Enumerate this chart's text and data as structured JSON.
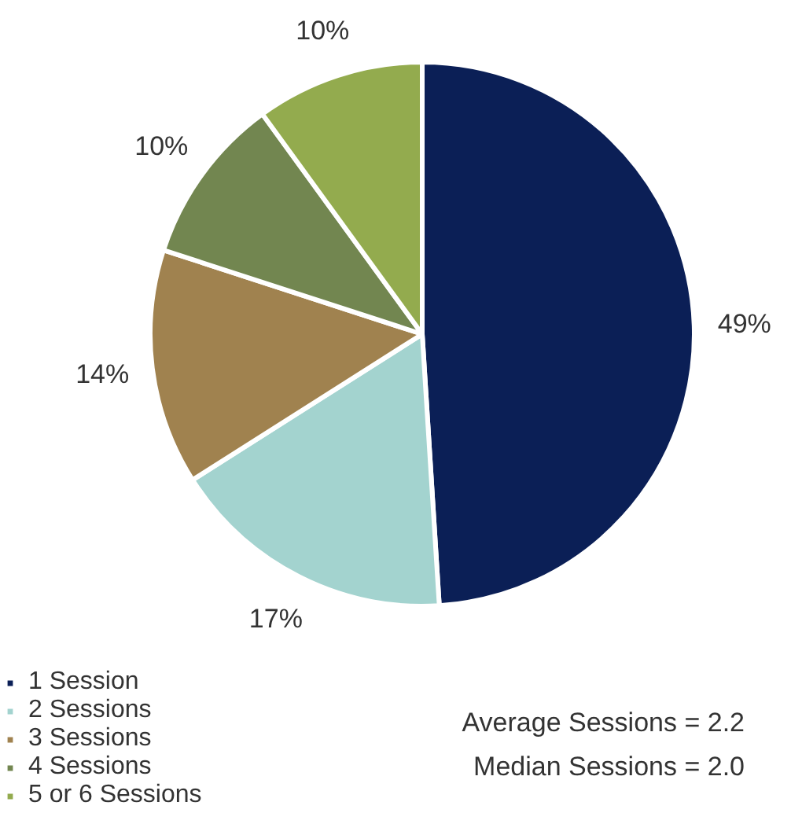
{
  "chart_data": {
    "type": "pie",
    "categories": [
      "1 Session",
      "2 Sessions",
      "3 Sessions",
      "4 Sessions",
      "5 or 6 Sessions"
    ],
    "values": [
      49,
      17,
      14,
      10,
      10
    ],
    "colors": [
      "#0b1f56",
      "#a3d3cf",
      "#a0824f",
      "#728650",
      "#93ab4e"
    ],
    "value_labels": [
      "49%",
      "17%",
      "14%",
      "10%",
      "10%"
    ],
    "legend": "bottom left",
    "annotations": [
      "Average Sessions = 2.2",
      "Median Sessions = 2.0"
    ]
  }
}
